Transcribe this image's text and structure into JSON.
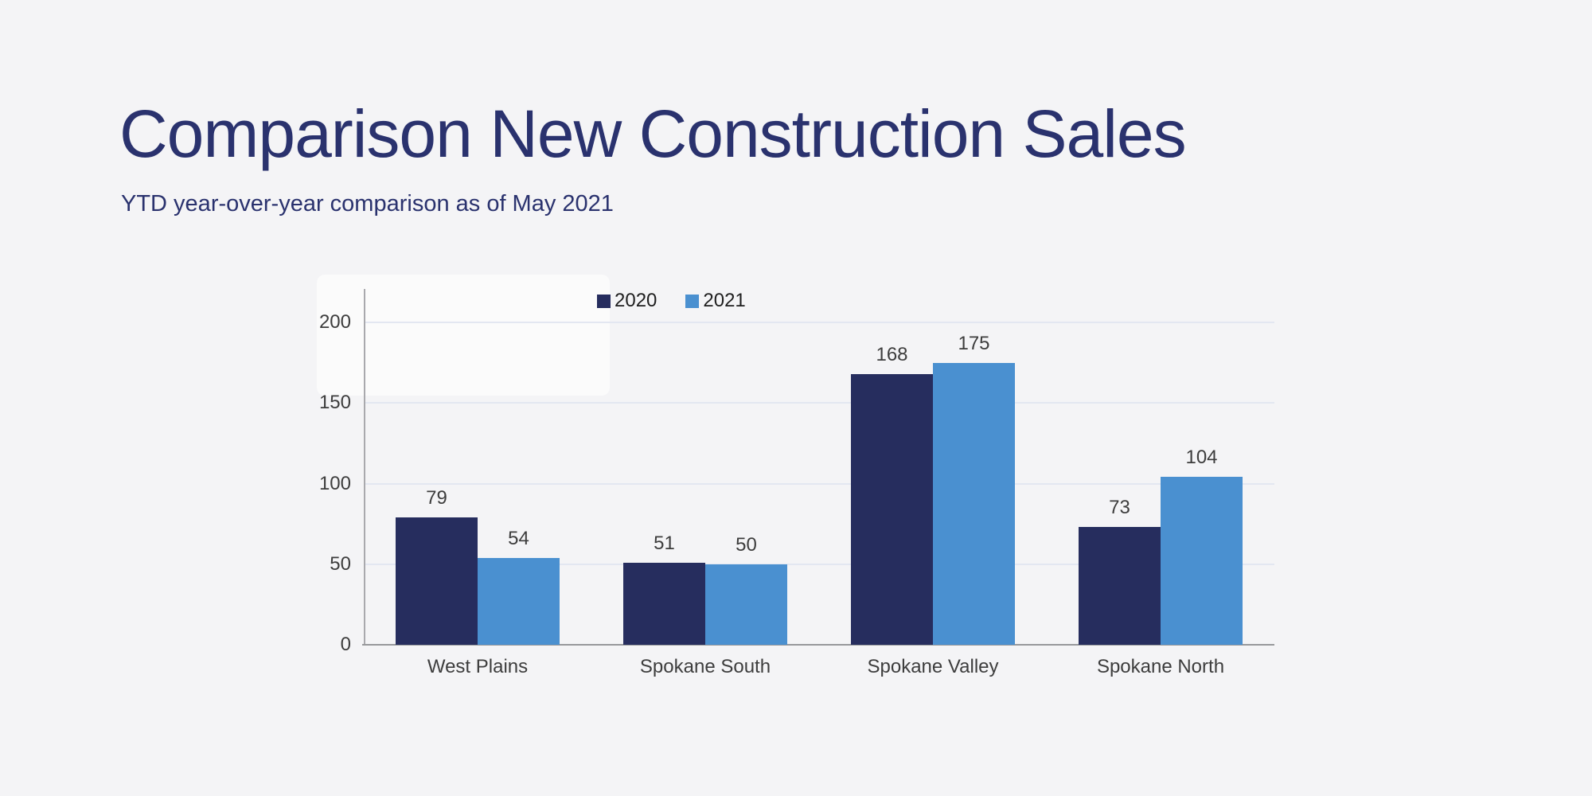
{
  "header": {
    "title": "Comparison New Construction Sales",
    "subtitle": "YTD year-over-year comparison as of May 2021"
  },
  "colors": {
    "accent_navy": "#2a326e",
    "bar_2020": "#262d5e",
    "bar_2021": "#4a90d0",
    "gridline": "#e3e7f1",
    "y_axis_line": "#a9a9ad",
    "x_axis_line": "#97989b",
    "label_text": "#3d3d3d",
    "background": "#f4f4f6"
  },
  "chart_data": {
    "type": "bar",
    "categories": [
      "West Plains",
      "Spokane South",
      "Spokane Valley",
      "Spokane North"
    ],
    "series": [
      {
        "name": "2020",
        "color": "#262d5e",
        "values": [
          79,
          51,
          168,
          73
        ]
      },
      {
        "name": "2021",
        "color": "#4a90d0",
        "values": [
          54,
          50,
          175,
          104
        ]
      }
    ],
    "title": "",
    "xlabel": "",
    "ylabel": "",
    "ylim": [
      0,
      200
    ],
    "yticks": [
      0,
      50,
      100,
      150,
      200
    ],
    "grid": true,
    "legend_position": "top-center",
    "data_labels": true
  }
}
